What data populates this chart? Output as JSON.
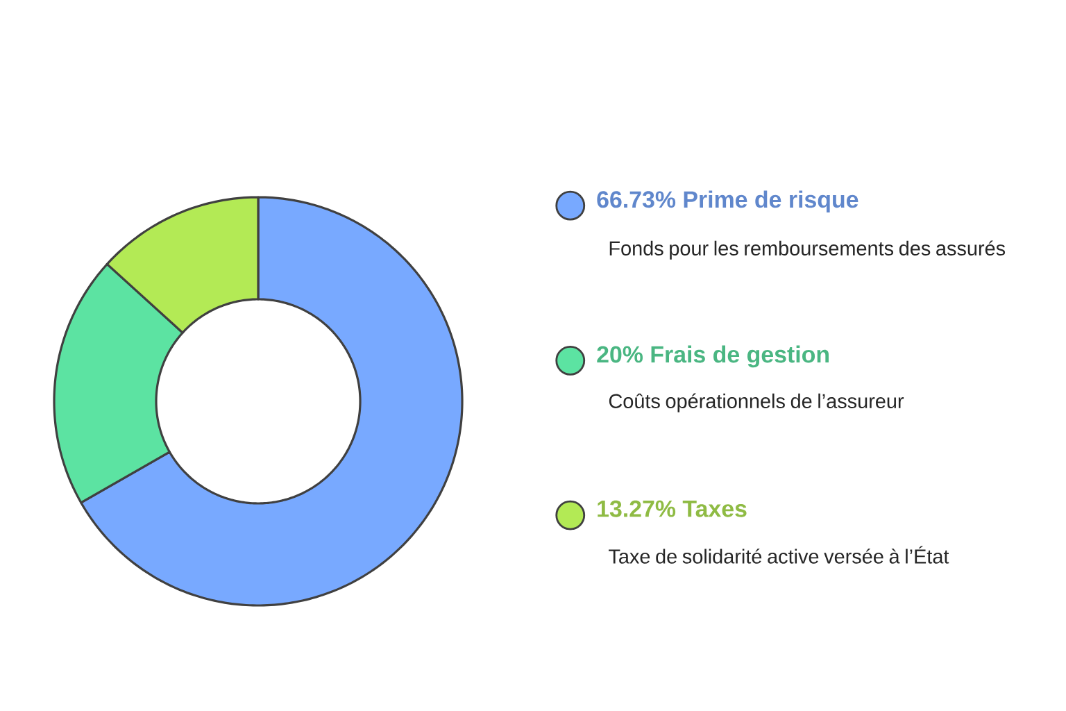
{
  "chart_data": {
    "type": "donut",
    "categories": [
      "66.73% Prime de risque",
      "20% Frais de gestion",
      "13.27% Taxes"
    ],
    "values": [
      66.73,
      20,
      13.27
    ],
    "colors": [
      "#78a9ff",
      "#5ce3a2",
      "#b3ea55"
    ],
    "annotations": [
      "Fonds pour les remboursements des assurés",
      "Coûts opérationnels de l’assureur",
      "Taxe de solidarité active versée à l’État"
    ],
    "legend": "right"
  }
}
